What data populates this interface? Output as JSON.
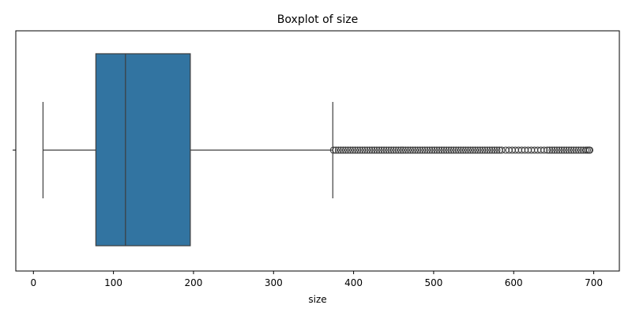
{
  "chart_data": {
    "type": "boxplot",
    "title": "Boxplot of size",
    "xlabel": "size",
    "ylabel": "",
    "xlim": [
      -22,
      732
    ],
    "xticks": [
      0,
      100,
      200,
      300,
      400,
      500,
      600,
      700
    ],
    "grid": false,
    "colors": {
      "box_fill": "#3274a1",
      "line": "#3d3d3d",
      "outlier_edge": "#3d3d3d"
    },
    "box": {
      "whisker_low": 12,
      "q1": 78,
      "median": 115,
      "q3": 196,
      "whisker_high": 374,
      "outliers": [
        375,
        378,
        381,
        384,
        387,
        390,
        393,
        396,
        399,
        402,
        405,
        408,
        411,
        414,
        417,
        420,
        423,
        426,
        429,
        432,
        435,
        438,
        441,
        444,
        447,
        450,
        453,
        456,
        459,
        462,
        465,
        468,
        471,
        474,
        477,
        480,
        483,
        486,
        489,
        492,
        495,
        498,
        501,
        504,
        507,
        510,
        513,
        516,
        519,
        522,
        525,
        528,
        531,
        534,
        537,
        540,
        543,
        546,
        549,
        552,
        555,
        558,
        561,
        564,
        567,
        570,
        573,
        576,
        579,
        582,
        585,
        590,
        594,
        598,
        602,
        606,
        610,
        614,
        618,
        622,
        626,
        630,
        634,
        638,
        642,
        645,
        648,
        651,
        654,
        657,
        660,
        663,
        666,
        669,
        672,
        675,
        678,
        681,
        684,
        687,
        690,
        692,
        694,
        695
      ]
    }
  }
}
